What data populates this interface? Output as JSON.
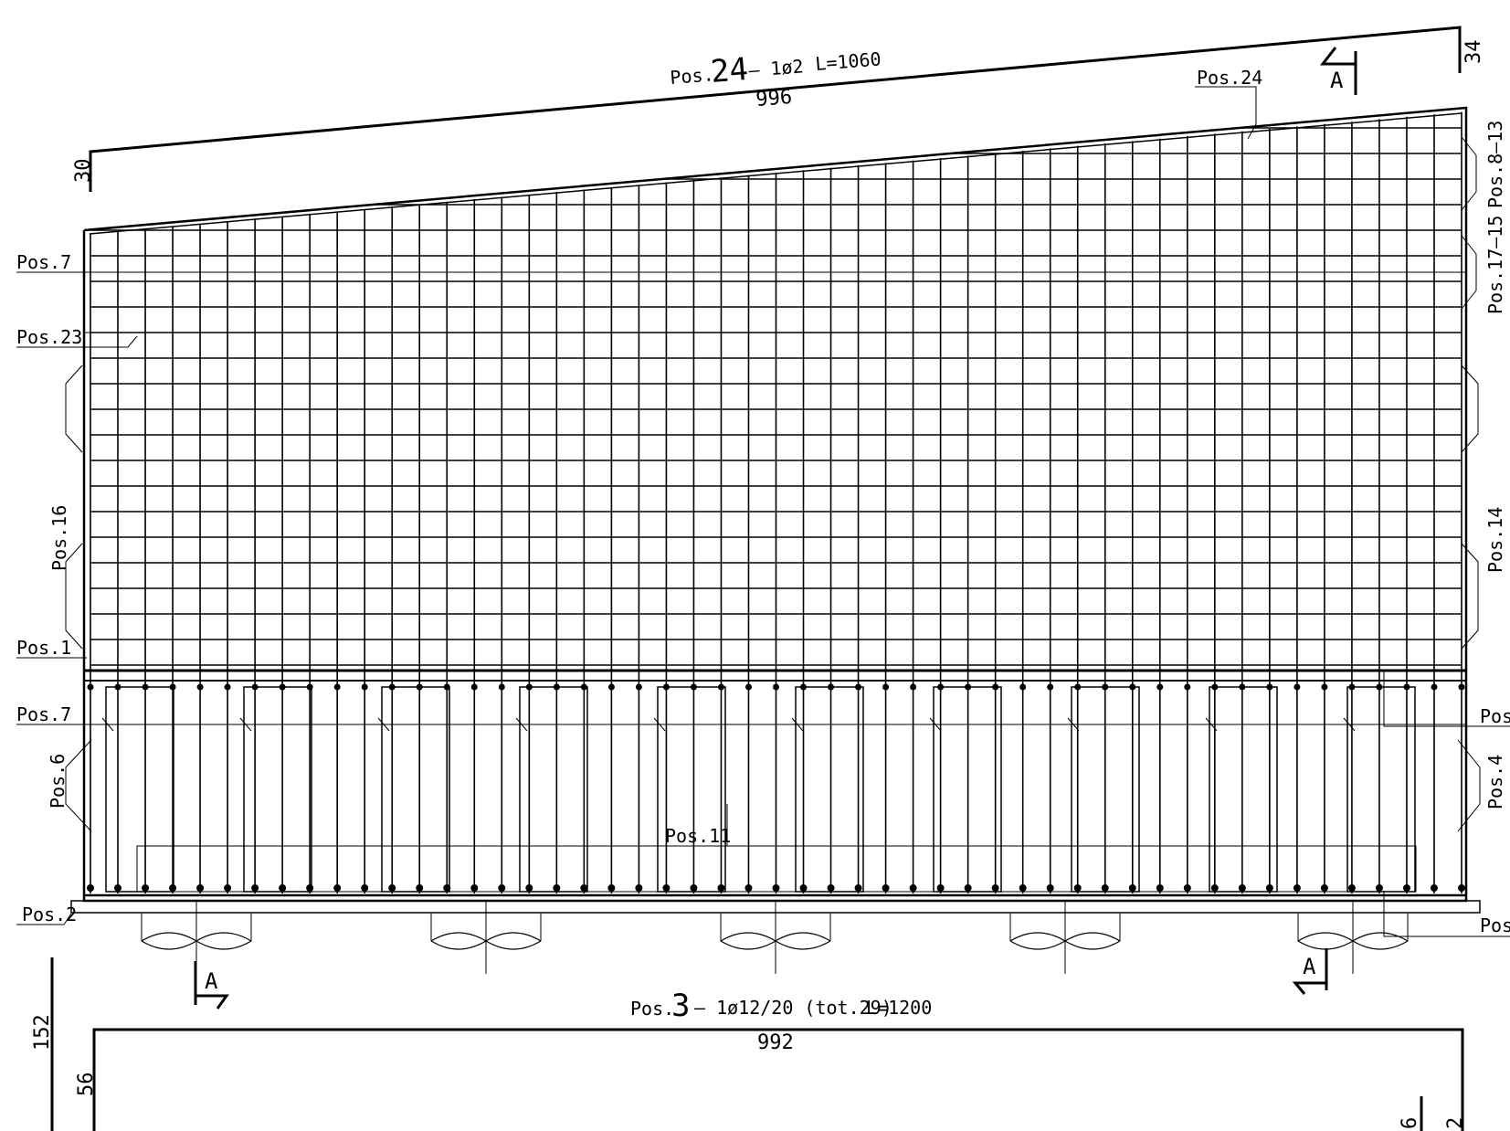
{
  "top_bar": {
    "pos_prefix": "Pos.",
    "pos_number": "24",
    "spec": "– 1ø2",
    "length": "L=1060",
    "main_dim": "996",
    "left_leg": "30",
    "right_leg": "34"
  },
  "bottom_bar": {
    "pos_prefix": "Pos.",
    "pos_number": "3",
    "spec": "– 1ø12/20 (tot.29)",
    "length": "L=1200",
    "main_dim": "992",
    "left_leg": "56",
    "left_outer": "152",
    "right_leg_a": "6",
    "right_leg_b": "2"
  },
  "section_marks": {
    "label": "A"
  },
  "labels": {
    "pos24": "Pos.24",
    "pos7_top": "Pos.7",
    "pos23": "Pos.23",
    "pos16": "Pos.16",
    "pos1": "Pos.1",
    "pos7_bottom": "Pos.7",
    "pos6": "Pos.6",
    "pos2": "Pos.2",
    "pos11": "Pos.11",
    "pos8_13": "Pos.8–13",
    "pos17_15": "Pos.17–15",
    "pos14": "Pos.14",
    "pos_right_mid": "Pos.",
    "pos4": "Pos.4",
    "pos_right_bottom": "Pos."
  }
}
